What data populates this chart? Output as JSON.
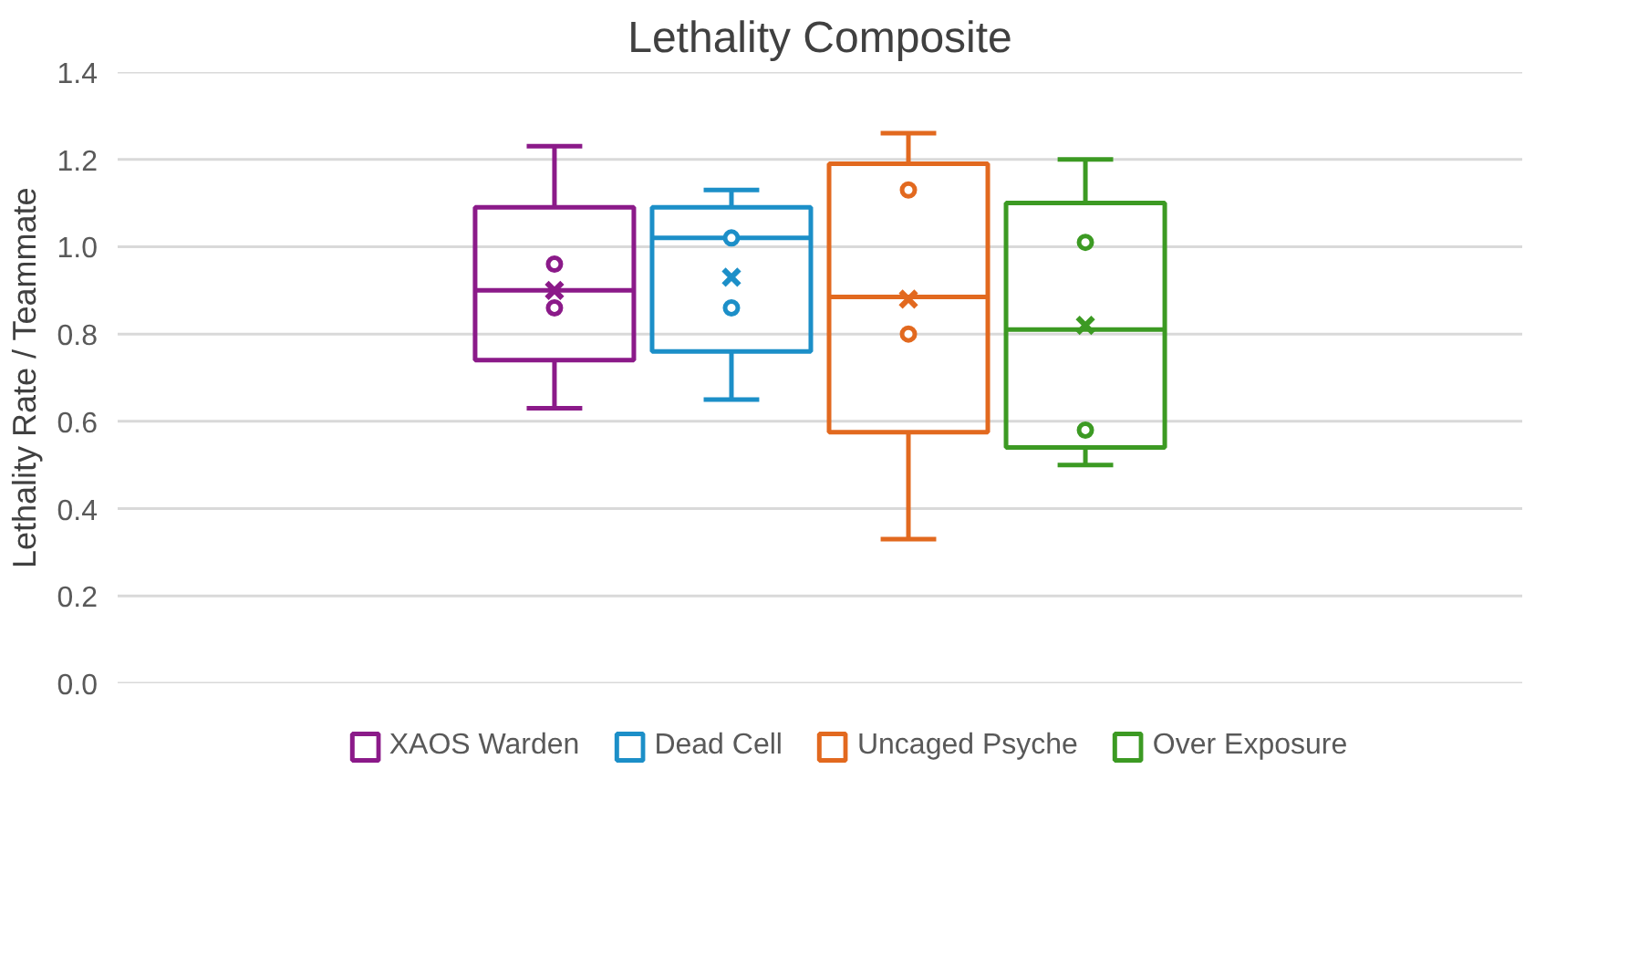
{
  "chart_data": {
    "type": "box",
    "title": "Lethality Composite",
    "ylabel": "Lethality Rate / Teammate",
    "categories": [
      null
    ],
    "ylim": [
      0,
      1.4
    ],
    "yticks": [
      {
        "value": 0,
        "label": "0.0"
      },
      {
        "value": 0.2,
        "label": "0.2"
      },
      {
        "value": 0.4,
        "label": "0.4"
      },
      {
        "value": 0.6,
        "label": "0.6"
      },
      {
        "value": 0.8,
        "label": "0.8"
      },
      {
        "value": 1.0,
        "label": "1.0"
      },
      {
        "value": 1.2,
        "label": "1.2"
      },
      {
        "value": 1.4,
        "label": "1.4"
      }
    ],
    "grid": "y",
    "legend": "bottom",
    "series": [
      {
        "name": "XAOS Warden",
        "color": "#8b1a89",
        "boxes": [
          {
            "low": 0.63,
            "q1": 0.74,
            "median": 0.9,
            "q3": 1.09,
            "high": 1.23,
            "mean": 0.9,
            "outliers": [
              0.96,
              0.86
            ]
          }
        ]
      },
      {
        "name": "Dead Cell",
        "color": "#1c8fc8",
        "boxes": [
          {
            "low": 0.65,
            "q1": 0.76,
            "median": 1.02,
            "q3": 1.09,
            "high": 1.13,
            "mean": 0.93,
            "outliers": [
              1.02,
              0.86
            ]
          }
        ]
      },
      {
        "name": "Uncaged Psyche",
        "color": "#e2691f",
        "boxes": [
          {
            "low": 0.33,
            "q1": 0.575,
            "median": 0.885,
            "q3": 1.19,
            "high": 1.26,
            "mean": 0.88,
            "outliers": [
              1.13,
              0.8
            ]
          }
        ]
      },
      {
        "name": "Over Exposure",
        "color": "#3c9a23",
        "boxes": [
          {
            "low": 0.5,
            "q1": 0.54,
            "median": 0.81,
            "q3": 1.1,
            "high": 1.2,
            "mean": 0.82,
            "outliers": [
              1.01,
              0.58
            ]
          }
        ]
      }
    ]
  }
}
